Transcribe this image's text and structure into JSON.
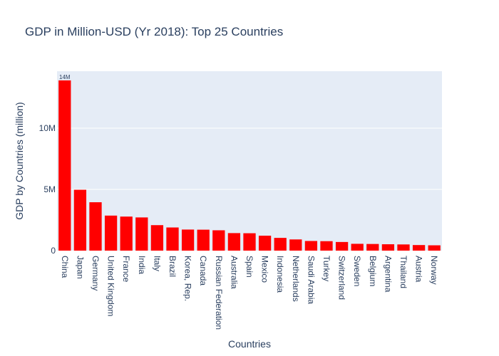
{
  "chart_data": {
    "type": "bar",
    "title": "GDP in Million-USD (Yr 2018): Top 25 Countries",
    "xlabel": "Countries",
    "ylabel": "GDP by Countries (million)",
    "categories": [
      "China",
      "Japan",
      "Germany",
      "United Kingdom",
      "France",
      "India",
      "Italy",
      "Brazil",
      "Korea, Rep.",
      "Canada",
      "Russian Federation",
      "Australia",
      "Spain",
      "Mexico",
      "Indonesia",
      "Netherlands",
      "Saudi Arabia",
      "Turkey",
      "Switzerland",
      "Sweden",
      "Belgium",
      "Argentina",
      "Thailand",
      "Austria",
      "Norway"
    ],
    "values": [
      13900000,
      4970000,
      3950000,
      2860000,
      2780000,
      2710000,
      2080000,
      1890000,
      1720000,
      1710000,
      1660000,
      1430000,
      1420000,
      1220000,
      1040000,
      914000,
      787000,
      771000,
      705000,
      556000,
      543000,
      520000,
      505000,
      455000,
      434000
    ],
    "value_labels": [
      "14M"
    ],
    "ylim": [
      0,
      14650000
    ],
    "yticks": [
      0,
      5000000,
      10000000
    ],
    "ytick_labels": [
      "0",
      "5M",
      "10M"
    ],
    "bar_color": "#ff0000",
    "plot_bgcolor": "#e5ecf6",
    "grid": true,
    "legend": false
  }
}
